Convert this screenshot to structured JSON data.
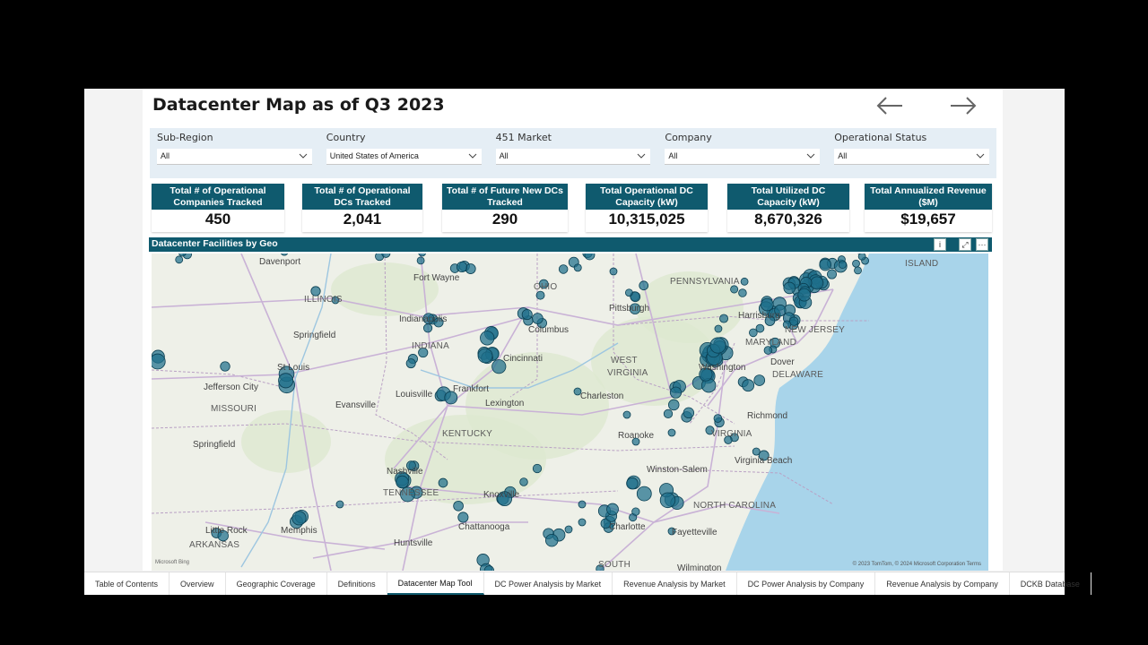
{
  "report": {
    "title": "Datacenter Map as of Q3 2023"
  },
  "nav": {
    "back_icon": "arrow-left-icon",
    "forward_icon": "arrow-right-icon"
  },
  "filters": [
    {
      "label": "Sub-Region",
      "value": "All"
    },
    {
      "label": "Country",
      "value": "United States of America"
    },
    {
      "label": "451 Market",
      "value": "All"
    },
    {
      "label": "Company",
      "value": "All"
    },
    {
      "label": "Operational Status",
      "value": "All"
    }
  ],
  "kpis": [
    {
      "label": "Total # of Operational Companies Tracked",
      "value": "450"
    },
    {
      "label": "Total # of Operational DCs Tracked",
      "value": "2,041"
    },
    {
      "label": "Total # of Future New DCs Tracked",
      "value": "290"
    },
    {
      "label": "Total Operational DC Capacity (kW)",
      "value": "10,315,025"
    },
    {
      "label": "Total Utilized DC Capacity (kW)",
      "value": "8,670,326"
    },
    {
      "label": "Total Annualized Revenue ($M)",
      "value": "$19,657"
    }
  ],
  "map": {
    "title": "Datacenter Facilities by Geo",
    "info_label": "i",
    "focus_label": "⤢",
    "more_label": "···",
    "attribution": "© 2023 TomTom, © 2024 Microsoft Corporation  Terms",
    "provider": "Microsoft Bing",
    "marker_color": "#1f6f8b",
    "labels": [
      {
        "text": "Davenport",
        "kind": "city"
      },
      {
        "text": "ILLINOIS",
        "kind": "state"
      },
      {
        "text": "Springfield",
        "kind": "city"
      },
      {
        "text": "St Louis",
        "kind": "city"
      },
      {
        "text": "Jefferson City",
        "kind": "city"
      },
      {
        "text": "MISSOURI",
        "kind": "state"
      },
      {
        "text": "Springfield",
        "kind": "city"
      },
      {
        "text": "Little Rock",
        "kind": "city"
      },
      {
        "text": "ARKANSAS",
        "kind": "state"
      },
      {
        "text": "Memphis",
        "kind": "city"
      },
      {
        "text": "Huntsville",
        "kind": "city"
      },
      {
        "text": "Fort Wayne",
        "kind": "city"
      },
      {
        "text": "Indianapolis",
        "kind": "city"
      },
      {
        "text": "INDIANA",
        "kind": "state"
      },
      {
        "text": "Evansville",
        "kind": "city"
      },
      {
        "text": "Louisville",
        "kind": "city"
      },
      {
        "text": "Frankfort",
        "kind": "city"
      },
      {
        "text": "Lexington",
        "kind": "city"
      },
      {
        "text": "KENTUCKY",
        "kind": "state"
      },
      {
        "text": "Nashville",
        "kind": "city"
      },
      {
        "text": "TENNESSEE",
        "kind": "state"
      },
      {
        "text": "Chattanooga",
        "kind": "city"
      },
      {
        "text": "Knoxville",
        "kind": "city"
      },
      {
        "text": "OHIO",
        "kind": "state"
      },
      {
        "text": "Columbus",
        "kind": "city"
      },
      {
        "text": "Cincinnati",
        "kind": "city"
      },
      {
        "text": "Pittsburgh",
        "kind": "city"
      },
      {
        "text": "PENNSYLVANIA",
        "kind": "state"
      },
      {
        "text": "WEST",
        "kind": "state"
      },
      {
        "text": "VIRGINIA",
        "kind": "state"
      },
      {
        "text": "Charleston",
        "kind": "city"
      },
      {
        "text": "Harrisburg",
        "kind": "city"
      },
      {
        "text": "MARYLAND",
        "kind": "state"
      },
      {
        "text": "Washington",
        "kind": "city"
      },
      {
        "text": "Dover",
        "kind": "city"
      },
      {
        "text": "DELAWARE",
        "kind": "state"
      },
      {
        "text": "NEW JERSEY",
        "kind": "state"
      },
      {
        "text": "Richmond",
        "kind": "city"
      },
      {
        "text": "VIRGINIA",
        "kind": "state"
      },
      {
        "text": "Roanoke",
        "kind": "city"
      },
      {
        "text": "Virginia Beach",
        "kind": "city"
      },
      {
        "text": "Winston-Salem",
        "kind": "city"
      },
      {
        "text": "NORTH CAROLINA",
        "kind": "state"
      },
      {
        "text": "Charlotte",
        "kind": "city"
      },
      {
        "text": "Fayetteville",
        "kind": "city"
      },
      {
        "text": "SOUTH",
        "kind": "state"
      },
      {
        "text": "Wilmington",
        "kind": "city"
      },
      {
        "text": "ISLAND",
        "kind": "state"
      }
    ]
  },
  "tabs": [
    {
      "label": "Table of Contents",
      "active": false
    },
    {
      "label": "Overview",
      "active": false
    },
    {
      "label": "Geographic Coverage",
      "active": false
    },
    {
      "label": "Definitions",
      "active": false
    },
    {
      "label": "Datacenter Map Tool",
      "active": true
    },
    {
      "label": "DC Power Analysis by Market",
      "active": false
    },
    {
      "label": "Revenue Analysis by Market",
      "active": false
    },
    {
      "label": "DC Power Analysis by Company",
      "active": false
    },
    {
      "label": "Revenue Analysis by Company",
      "active": false
    },
    {
      "label": "DCKB Database",
      "active": false
    }
  ]
}
